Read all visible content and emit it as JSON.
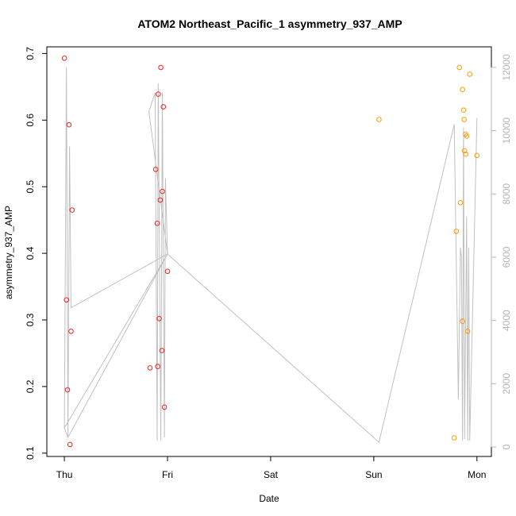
{
  "chart_data": {
    "type": "scatter",
    "title": "ATOM2 Northeast_Pacific_1 asymmetry_937_AMP",
    "xlabel": "Date",
    "ylabel": "asymmetry_937_AMP",
    "x_ticks": [
      "Thu",
      "Fri",
      "Sat",
      "Sun",
      "Mon"
    ],
    "x_tick_values": [
      0,
      1,
      2,
      3,
      4
    ],
    "xlim": [
      -0.17,
      4.14
    ],
    "y_ticks": [
      "0.1",
      "0.2",
      "0.3",
      "0.4",
      "0.5",
      "0.6",
      "0.7"
    ],
    "y_tick_values": [
      0.1,
      0.2,
      0.3,
      0.4,
      0.5,
      0.6,
      0.7
    ],
    "ylim": [
      0.095,
      0.71
    ],
    "y2_ticks": [
      "0",
      "2000",
      "4000",
      "6000",
      "8000",
      "10000",
      "12000"
    ],
    "y2_tick_values": [
      0,
      2000,
      4000,
      6000,
      8000,
      10000,
      12000
    ],
    "y2lim": [
      -300,
      12650
    ],
    "grid": false,
    "colors": {
      "series_red": "#ee2222",
      "series_orange": "#ff9900",
      "line": "#c0c0c0",
      "axis": "#000000",
      "axis_right": "#b4b4b4"
    },
    "series": [
      {
        "marker": "circle-open",
        "color": "#ee2222",
        "points": [
          {
            "x": 0.0,
            "y": 0.693
          },
          {
            "x": 0.02,
            "y": 0.33
          },
          {
            "x": 0.03,
            "y": 0.195
          },
          {
            "x": 0.045,
            "y": 0.593
          },
          {
            "x": 0.055,
            "y": 0.113
          },
          {
            "x": 0.065,
            "y": 0.283
          },
          {
            "x": 0.075,
            "y": 0.465
          },
          {
            "x": 0.83,
            "y": 0.228
          },
          {
            "x": 0.885,
            "y": 0.526
          },
          {
            "x": 0.9,
            "y": 0.445
          },
          {
            "x": 0.905,
            "y": 0.23
          },
          {
            "x": 0.91,
            "y": 0.639
          },
          {
            "x": 0.92,
            "y": 0.302
          },
          {
            "x": 0.93,
            "y": 0.48
          },
          {
            "x": 0.935,
            "y": 0.679
          },
          {
            "x": 0.945,
            "y": 0.254
          },
          {
            "x": 0.95,
            "y": 0.493
          },
          {
            "x": 0.96,
            "y": 0.62
          },
          {
            "x": 0.97,
            "y": 0.169
          },
          {
            "x": 1.0,
            "y": 0.373
          }
        ]
      },
      {
        "marker": "circle-open",
        "color": "#ff9900",
        "points": [
          {
            "x": 3.05,
            "y": 0.601
          },
          {
            "x": 3.78,
            "y": 0.123
          },
          {
            "x": 3.8,
            "y": 0.433
          },
          {
            "x": 3.83,
            "y": 0.679
          },
          {
            "x": 3.84,
            "y": 0.476
          },
          {
            "x": 3.86,
            "y": 0.298
          },
          {
            "x": 3.86,
            "y": 0.646
          },
          {
            "x": 3.87,
            "y": 0.615
          },
          {
            "x": 3.875,
            "y": 0.601
          },
          {
            "x": 3.88,
            "y": 0.554
          },
          {
            "x": 3.89,
            "y": 0.549
          },
          {
            "x": 3.89,
            "y": 0.579
          },
          {
            "x": 3.9,
            "y": 0.576
          },
          {
            "x": 3.91,
            "y": 0.283
          },
          {
            "x": 3.93,
            "y": 0.669
          },
          {
            "x": 4.0,
            "y": 0.547
          }
        ]
      },
      {
        "type": "line",
        "axis": "right",
        "color": "#c0c0c0",
        "points": [
          {
            "x": 0.0,
            "y": 600
          },
          {
            "x": 0.02,
            "y": 12000
          },
          {
            "x": 0.035,
            "y": 300
          },
          {
            "x": 0.05,
            "y": 9500
          },
          {
            "x": 0.065,
            "y": 4400
          },
          {
            "x": 1.0,
            "y": 6100
          },
          {
            "x": 0.0,
            "y": 600
          },
          {
            "x": 0.035,
            "y": 300
          },
          {
            "x": 1.0,
            "y": 6100
          },
          {
            "x": 0.82,
            "y": 10600
          },
          {
            "x": 0.88,
            "y": 11200
          },
          {
            "x": 0.9,
            "y": 200
          },
          {
            "x": 0.91,
            "y": 11500
          },
          {
            "x": 0.935,
            "y": 200
          },
          {
            "x": 0.95,
            "y": 11200
          },
          {
            "x": 0.97,
            "y": 300
          },
          {
            "x": 0.98,
            "y": 8500
          },
          {
            "x": 1.0,
            "y": 6100
          },
          {
            "x": 3.05,
            "y": 150
          },
          {
            "x": 3.78,
            "y": 10200
          },
          {
            "x": 3.82,
            "y": 1500
          },
          {
            "x": 3.84,
            "y": 6300
          },
          {
            "x": 3.85,
            "y": 6000
          },
          {
            "x": 3.86,
            "y": 200
          },
          {
            "x": 3.87,
            "y": 10100
          },
          {
            "x": 3.88,
            "y": 250
          },
          {
            "x": 3.9,
            "y": 7300
          },
          {
            "x": 3.91,
            "y": 200
          },
          {
            "x": 3.92,
            "y": 6300
          },
          {
            "x": 3.93,
            "y": 200
          },
          {
            "x": 4.0,
            "y": 10400
          }
        ]
      }
    ]
  }
}
